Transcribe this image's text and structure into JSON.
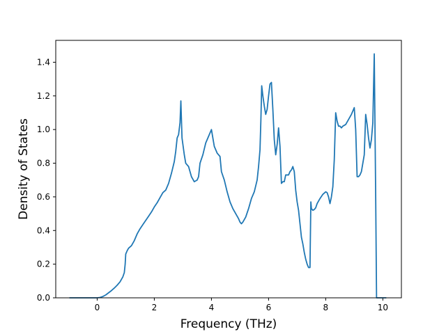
{
  "chart_data": {
    "type": "line",
    "xlabel": "Frequency (THz)",
    "ylabel": "Density of States",
    "xlim": [
      -1.45,
      10.65
    ],
    "ylim": [
      0.0,
      1.53
    ],
    "xticks": [
      0,
      2,
      4,
      6,
      8,
      10
    ],
    "yticks": [
      0.0,
      0.2,
      0.4,
      0.6,
      0.8,
      1.0,
      1.2,
      1.4
    ],
    "xtick_labels": [
      "0",
      "2",
      "4",
      "6",
      "8",
      "10"
    ],
    "ytick_labels": [
      "0.0",
      "0.2",
      "0.4",
      "0.6",
      "0.8",
      "1.0",
      "1.2",
      "1.4"
    ],
    "grid": false,
    "legend": null,
    "line_color": "#1f77b4",
    "series": [
      {
        "points": [
          [
            -0.95,
            0.0
          ],
          [
            0.0,
            0.0
          ],
          [
            0.1,
            0.002
          ],
          [
            0.2,
            0.008
          ],
          [
            0.3,
            0.017
          ],
          [
            0.4,
            0.03
          ],
          [
            0.5,
            0.043
          ],
          [
            0.6,
            0.058
          ],
          [
            0.7,
            0.075
          ],
          [
            0.8,
            0.095
          ],
          [
            0.85,
            0.11
          ],
          [
            0.9,
            0.125
          ],
          [
            0.95,
            0.15
          ],
          [
            0.98,
            0.2
          ],
          [
            1.0,
            0.26
          ],
          [
            1.05,
            0.28
          ],
          [
            1.1,
            0.295
          ],
          [
            1.2,
            0.31
          ],
          [
            1.3,
            0.34
          ],
          [
            1.4,
            0.38
          ],
          [
            1.5,
            0.41
          ],
          [
            1.6,
            0.435
          ],
          [
            1.7,
            0.46
          ],
          [
            1.8,
            0.485
          ],
          [
            1.9,
            0.51
          ],
          [
            2.0,
            0.54
          ],
          [
            2.1,
            0.565
          ],
          [
            2.2,
            0.595
          ],
          [
            2.3,
            0.625
          ],
          [
            2.4,
            0.64
          ],
          [
            2.5,
            0.68
          ],
          [
            2.6,
            0.74
          ],
          [
            2.7,
            0.81
          ],
          [
            2.75,
            0.87
          ],
          [
            2.8,
            0.95
          ],
          [
            2.85,
            0.97
          ],
          [
            2.9,
            1.04
          ],
          [
            2.93,
            1.17
          ],
          [
            2.97,
            0.95
          ],
          [
            3.05,
            0.85
          ],
          [
            3.1,
            0.8
          ],
          [
            3.2,
            0.78
          ],
          [
            3.3,
            0.72
          ],
          [
            3.4,
            0.69
          ],
          [
            3.5,
            0.7
          ],
          [
            3.55,
            0.72
          ],
          [
            3.6,
            0.8
          ],
          [
            3.7,
            0.85
          ],
          [
            3.8,
            0.92
          ],
          [
            3.9,
            0.96
          ],
          [
            4.0,
            1.0
          ],
          [
            4.1,
            0.9
          ],
          [
            4.2,
            0.86
          ],
          [
            4.3,
            0.84
          ],
          [
            4.35,
            0.75
          ],
          [
            4.45,
            0.7
          ],
          [
            4.55,
            0.63
          ],
          [
            4.65,
            0.57
          ],
          [
            4.75,
            0.53
          ],
          [
            4.85,
            0.5
          ],
          [
            4.95,
            0.47
          ],
          [
            5.0,
            0.45
          ],
          [
            5.05,
            0.44
          ],
          [
            5.1,
            0.45
          ],
          [
            5.2,
            0.48
          ],
          [
            5.3,
            0.53
          ],
          [
            5.4,
            0.59
          ],
          [
            5.5,
            0.63
          ],
          [
            5.6,
            0.7
          ],
          [
            5.65,
            0.78
          ],
          [
            5.7,
            0.88
          ],
          [
            5.73,
            1.05
          ],
          [
            5.76,
            1.26
          ],
          [
            5.8,
            1.2
          ],
          [
            5.85,
            1.14
          ],
          [
            5.9,
            1.09
          ],
          [
            5.95,
            1.12
          ],
          [
            6.0,
            1.2
          ],
          [
            6.05,
            1.27
          ],
          [
            6.1,
            1.28
          ],
          [
            6.15,
            1.12
          ],
          [
            6.2,
            0.94
          ],
          [
            6.25,
            0.85
          ],
          [
            6.3,
            0.91
          ],
          [
            6.35,
            1.01
          ],
          [
            6.4,
            0.9
          ],
          [
            6.45,
            0.68
          ],
          [
            6.5,
            0.69
          ],
          [
            6.55,
            0.69
          ],
          [
            6.6,
            0.73
          ],
          [
            6.7,
            0.73
          ],
          [
            6.75,
            0.75
          ],
          [
            6.8,
            0.76
          ],
          [
            6.85,
            0.78
          ],
          [
            6.9,
            0.75
          ],
          [
            6.95,
            0.64
          ],
          [
            7.0,
            0.57
          ],
          [
            7.05,
            0.52
          ],
          [
            7.1,
            0.44
          ],
          [
            7.15,
            0.36
          ],
          [
            7.2,
            0.32
          ],
          [
            7.25,
            0.27
          ],
          [
            7.3,
            0.23
          ],
          [
            7.35,
            0.2
          ],
          [
            7.4,
            0.18
          ],
          [
            7.45,
            0.18
          ],
          [
            7.48,
            0.57
          ],
          [
            7.5,
            0.53
          ],
          [
            7.55,
            0.52
          ],
          [
            7.6,
            0.525
          ],
          [
            7.65,
            0.535
          ],
          [
            7.7,
            0.56
          ],
          [
            7.8,
            0.59
          ],
          [
            7.9,
            0.615
          ],
          [
            8.0,
            0.63
          ],
          [
            8.05,
            0.625
          ],
          [
            8.1,
            0.6
          ],
          [
            8.15,
            0.56
          ],
          [
            8.2,
            0.6
          ],
          [
            8.25,
            0.66
          ],
          [
            8.3,
            0.82
          ],
          [
            8.35,
            1.1
          ],
          [
            8.4,
            1.05
          ],
          [
            8.45,
            1.02
          ],
          [
            8.5,
            1.02
          ],
          [
            8.55,
            1.01
          ],
          [
            8.6,
            1.02
          ],
          [
            8.7,
            1.03
          ],
          [
            8.8,
            1.06
          ],
          [
            8.9,
            1.09
          ],
          [
            9.0,
            1.13
          ],
          [
            9.05,
            1.0
          ],
          [
            9.1,
            0.72
          ],
          [
            9.15,
            0.72
          ],
          [
            9.2,
            0.73
          ],
          [
            9.25,
            0.75
          ],
          [
            9.3,
            0.8
          ],
          [
            9.35,
            0.85
          ],
          [
            9.4,
            1.09
          ],
          [
            9.45,
            1.03
          ],
          [
            9.5,
            0.95
          ],
          [
            9.55,
            0.89
          ],
          [
            9.6,
            0.94
          ],
          [
            9.65,
            1.04
          ],
          [
            9.7,
            1.45
          ],
          [
            9.75,
            0.6
          ],
          [
            9.78,
            0.0
          ],
          [
            10.1,
            0.0
          ]
        ]
      }
    ]
  }
}
